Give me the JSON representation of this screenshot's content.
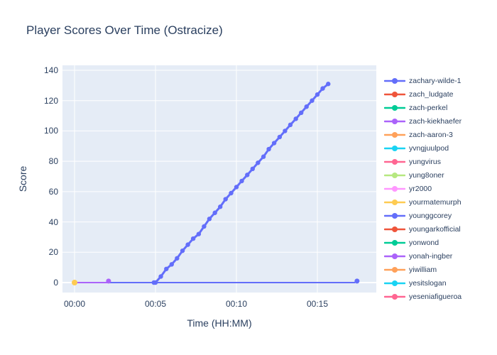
{
  "figure": {
    "background": "#ffffff",
    "plot_background": "#e5ecf6",
    "grid_color": "#ffffff",
    "text_color": "#2a3f5f"
  },
  "chart_data": {
    "type": "line",
    "title": "Player Scores Over Time (Ostracize)",
    "xlabel": "Time (HH:MM)",
    "ylabel": "Score",
    "x_axis_unit": "minutes",
    "xlim": [
      -0.77,
      18.65
    ],
    "ylim": [
      -6.6,
      143.3
    ],
    "x_ticks": {
      "values": [
        0,
        5,
        10,
        15
      ],
      "labels": [
        "00:00",
        "00:05",
        "00:10",
        "00:15"
      ]
    },
    "y_ticks": [
      0,
      20,
      40,
      60,
      80,
      100,
      120,
      140
    ],
    "grid": true,
    "legend_position": "right",
    "legend_entries": [
      {
        "label": "zachary-wilde-1",
        "color": "#636EFA"
      },
      {
        "label": "zach_ludgate",
        "color": "#EF553B"
      },
      {
        "label": "zach-perkel",
        "color": "#00CC96"
      },
      {
        "label": "zach-kiekhaefer",
        "color": "#AB63FA"
      },
      {
        "label": "zach-aaron-3",
        "color": "#FFA15A"
      },
      {
        "label": "yvngjuulpod",
        "color": "#19D3F3"
      },
      {
        "label": "yungvirus",
        "color": "#FF6692"
      },
      {
        "label": "yung8oner",
        "color": "#B6E880"
      },
      {
        "label": "yr2000",
        "color": "#FF97FF"
      },
      {
        "label": "yourmatemurph",
        "color": "#FECB52"
      },
      {
        "label": "younggcorey",
        "color": "#636EFA"
      },
      {
        "label": "youngarkofficial",
        "color": "#EF553B"
      },
      {
        "label": "yonwond",
        "color": "#00CC96"
      },
      {
        "label": "yonah-ingber",
        "color": "#AB63FA"
      },
      {
        "label": "yiwilliam",
        "color": "#FFA15A"
      },
      {
        "label": "yesitslogan",
        "color": "#19D3F3"
      },
      {
        "label": "yeseniafigueroa",
        "color": "#FF6692"
      }
    ],
    "series": [
      {
        "name": "younggcorey",
        "color": "#636EFA",
        "mode": "lines+markers",
        "line_width": 2,
        "marker_size": 3.5,
        "markers_at_ends_only": true,
        "points": [
          [
            0,
            0
          ],
          [
            17.3,
            0
          ],
          [
            17.45,
            1
          ]
        ]
      },
      {
        "name": "zach-kiekhaefer",
        "color": "#AB63FA",
        "mode": "lines+markers",
        "line_width": 2,
        "marker_size": 3.5,
        "markers_at_ends_only": true,
        "points": [
          [
            0,
            0
          ],
          [
            2.0,
            0
          ],
          [
            2.1,
            1
          ]
        ]
      },
      {
        "name": "yourmatemurph",
        "color": "#FECB52",
        "mode": "lines+markers",
        "line_width": 2,
        "marker_size": 4,
        "markers_at_ends_only": false,
        "points": [
          [
            0,
            0
          ]
        ]
      },
      {
        "name": "zachary-wilde-1",
        "color": "#636EFA",
        "mode": "lines+markers",
        "line_width": 3,
        "marker_size": 3.2,
        "markers_at_ends_only": false,
        "points": [
          [
            4.9,
            0
          ],
          [
            5.0,
            0
          ],
          [
            5.33,
            4
          ],
          [
            5.67,
            9
          ],
          [
            6.0,
            12
          ],
          [
            6.33,
            16
          ],
          [
            6.67,
            21
          ],
          [
            7.0,
            25
          ],
          [
            7.33,
            29
          ],
          [
            7.67,
            32
          ],
          [
            8.0,
            37
          ],
          [
            8.33,
            42
          ],
          [
            8.67,
            46
          ],
          [
            9.0,
            50
          ],
          [
            9.33,
            55
          ],
          [
            9.67,
            59
          ],
          [
            10.0,
            63
          ],
          [
            10.33,
            67
          ],
          [
            10.67,
            71
          ],
          [
            11.0,
            75
          ],
          [
            11.33,
            79
          ],
          [
            11.67,
            83
          ],
          [
            12.0,
            88
          ],
          [
            12.33,
            92
          ],
          [
            12.67,
            96
          ],
          [
            13.0,
            100
          ],
          [
            13.33,
            104
          ],
          [
            13.67,
            108
          ],
          [
            14.0,
            112
          ],
          [
            14.33,
            116
          ],
          [
            14.67,
            120
          ],
          [
            15.0,
            124
          ],
          [
            15.33,
            128
          ],
          [
            15.67,
            131
          ]
        ]
      }
    ]
  }
}
